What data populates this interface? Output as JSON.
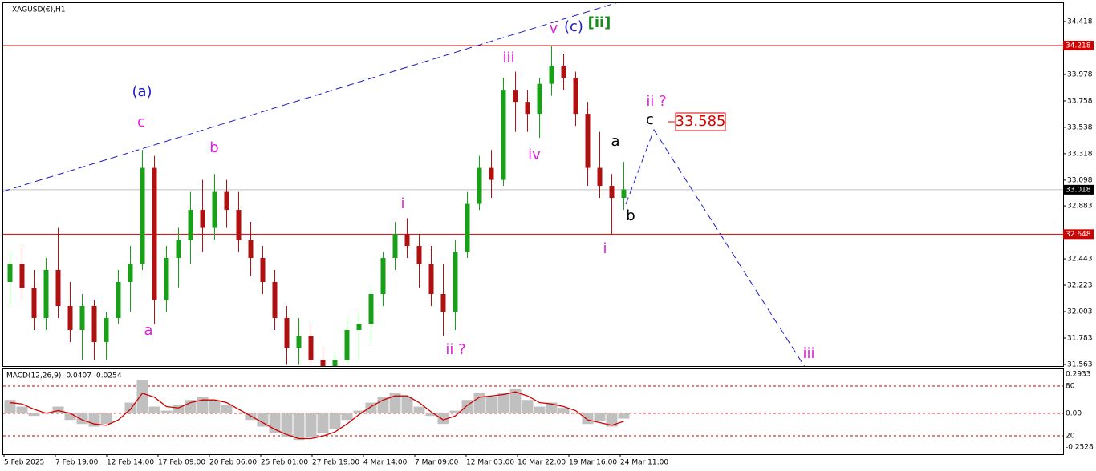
{
  "chart_data": {
    "type": "candlestick",
    "title": "XAGUSD(€),H1",
    "xlabels": [
      "5 Feb 2025",
      "7 Feb 19:00",
      "12 Feb 14:00",
      "17 Feb 09:00",
      "20 Feb 06:00",
      "25 Feb 01:00",
      "27 Feb 19:00",
      "4 Mar 14:00",
      "7 Mar 09:00",
      "12 Mar 03:00",
      "16 Mar 22:00",
      "19 Mar 16:00",
      "24 Mar 11:00"
    ],
    "ylim": [
      31.563,
      34.418
    ],
    "yticks": [
      34.418,
      33.978,
      33.758,
      33.538,
      33.318,
      33.098,
      32.883,
      32.443,
      32.223,
      32.003,
      31.783,
      31.563
    ],
    "up_color": "#19a019",
    "down_color": "#b01010",
    "open": [
      32.25,
      32.4,
      32.2,
      31.95,
      32.35,
      32.05,
      31.85,
      32.05,
      31.75,
      31.95,
      32.25,
      32.4,
      33.2,
      32.1,
      32.45,
      32.6,
      32.85,
      32.7,
      33.0,
      32.85,
      32.6,
      32.45,
      32.25,
      31.95,
      31.7,
      31.8,
      31.6,
      31.55,
      31.6,
      31.85,
      31.9,
      32.15,
      32.45,
      32.65,
      32.55,
      32.4,
      32.15,
      32.0,
      32.5,
      32.9,
      33.2,
      33.1,
      33.85,
      33.75,
      33.65,
      33.9,
      34.05,
      33.95,
      33.65,
      33.2,
      33.05,
      32.95
    ],
    "high": [
      32.5,
      32.55,
      32.35,
      32.45,
      32.7,
      32.25,
      32.15,
      32.1,
      32.0,
      32.35,
      32.55,
      33.35,
      33.3,
      32.55,
      32.7,
      33.0,
      33.1,
      33.15,
      33.1,
      33.0,
      32.75,
      32.55,
      32.35,
      32.05,
      31.95,
      31.9,
      31.7,
      31.65,
      31.95,
      32.0,
      32.2,
      32.5,
      32.75,
      32.78,
      32.65,
      32.55,
      32.4,
      32.6,
      33.0,
      33.3,
      33.35,
      33.95,
      34.0,
      33.85,
      33.95,
      34.22,
      34.15,
      34.0,
      33.75,
      33.5,
      33.15,
      33.25
    ],
    "low": [
      32.05,
      32.1,
      31.85,
      31.85,
      31.95,
      31.75,
      31.6,
      31.6,
      31.6,
      31.9,
      32.0,
      32.35,
      31.9,
      32.0,
      32.2,
      32.4,
      32.5,
      32.6,
      32.7,
      32.5,
      32.3,
      32.15,
      31.85,
      31.56,
      31.56,
      31.56,
      31.45,
      31.45,
      31.56,
      31.6,
      31.75,
      32.05,
      32.35,
      32.45,
      32.2,
      32.05,
      31.8,
      31.85,
      32.45,
      32.85,
      32.95,
      33.05,
      33.5,
      33.5,
      33.45,
      33.8,
      33.85,
      33.55,
      33.05,
      32.95,
      32.65,
      32.85
    ],
    "close": [
      32.4,
      32.2,
      31.95,
      32.35,
      32.05,
      31.85,
      32.05,
      31.75,
      31.95,
      32.25,
      32.4,
      33.2,
      32.1,
      32.45,
      32.6,
      32.85,
      32.7,
      33.0,
      32.85,
      32.6,
      32.45,
      32.25,
      31.95,
      31.7,
      31.8,
      31.6,
      31.55,
      31.6,
      31.85,
      31.9,
      32.15,
      32.45,
      32.65,
      32.55,
      32.4,
      32.15,
      32.0,
      32.5,
      32.9,
      33.2,
      33.1,
      33.85,
      33.75,
      33.65,
      33.9,
      34.05,
      33.95,
      33.65,
      33.2,
      33.05,
      32.95,
      33.02
    ],
    "levels": [
      34.218,
      32.648
    ],
    "level_color": "#d00000",
    "last_price": 33.018,
    "annotations": [
      {
        "text": "(a)",
        "color": "#1a1acc"
      },
      {
        "text": "c",
        "color": "#e020e0"
      },
      {
        "text": "a",
        "color": "#e020e0"
      },
      {
        "text": "b",
        "color": "#e020e0"
      },
      {
        "text": "i",
        "color": "#e020e0"
      },
      {
        "text": "ii ?",
        "color": "#e020e0"
      },
      {
        "text": "iii",
        "color": "#e020e0"
      },
      {
        "text": "iv",
        "color": "#e020e0"
      },
      {
        "text": "v",
        "color": "#e020e0"
      },
      {
        "text": "(c)",
        "color": "#1a1acc"
      },
      {
        "text": "[ii]",
        "color": "#1a8a1a"
      },
      {
        "text": "a",
        "color": "#000000"
      },
      {
        "text": "b",
        "color": "#000000"
      },
      {
        "text": "i",
        "color": "#e020e0"
      },
      {
        "text": "ii ?",
        "color": "#e020e0"
      },
      {
        "text": "c",
        "color": "#000000"
      },
      {
        "text": "33.585",
        "color": "#e00000"
      },
      {
        "text": "iii",
        "color": "#e020e0"
      }
    ],
    "macd": {
      "title": "MACD(12,26,9) -0.0407 -0.0254",
      "ylim": [
        -0.2528,
        0.2933
      ],
      "yticks": [
        0.2933,
        -0.2528
      ],
      "levels": [
        {
          "value": 0.2033,
          "label": "80"
        },
        {
          "value": 0,
          "label": "0.00"
        },
        {
          "value": -0.1688,
          "label": "20"
        }
      ],
      "main": [
        0.1,
        0.05,
        -0.02,
        0.0,
        0.05,
        -0.05,
        -0.08,
        -0.1,
        -0.08,
        0.0,
        0.08,
        0.25,
        0.05,
        0.02,
        0.06,
        0.1,
        0.12,
        0.1,
        0.06,
        0.0,
        -0.05,
        -0.1,
        -0.15,
        -0.18,
        -0.2,
        -0.18,
        -0.15,
        -0.12,
        -0.05,
        0.02,
        0.08,
        0.12,
        0.15,
        0.12,
        0.05,
        -0.02,
        -0.08,
        0.02,
        0.1,
        0.15,
        0.12,
        0.15,
        0.18,
        0.1,
        0.05,
        0.08,
        0.04,
        0.0,
        -0.08,
        -0.06,
        -0.1,
        -0.04
      ],
      "signal": [
        0.08,
        0.07,
        0.03,
        0.0,
        0.02,
        0.0,
        -0.05,
        -0.08,
        -0.09,
        -0.05,
        0.03,
        0.15,
        0.12,
        0.05,
        0.04,
        0.08,
        0.1,
        0.1,
        0.08,
        0.03,
        -0.02,
        -0.07,
        -0.12,
        -0.16,
        -0.19,
        -0.19,
        -0.17,
        -0.14,
        -0.08,
        -0.01,
        0.05,
        0.1,
        0.13,
        0.13,
        0.08,
        0.01,
        -0.05,
        -0.02,
        0.06,
        0.12,
        0.13,
        0.14,
        0.16,
        0.13,
        0.08,
        0.07,
        0.05,
        0.02,
        -0.05,
        -0.07,
        -0.09,
        -0.06
      ],
      "main_color": "#c0c0c0",
      "signal_color": "#d00000"
    }
  }
}
